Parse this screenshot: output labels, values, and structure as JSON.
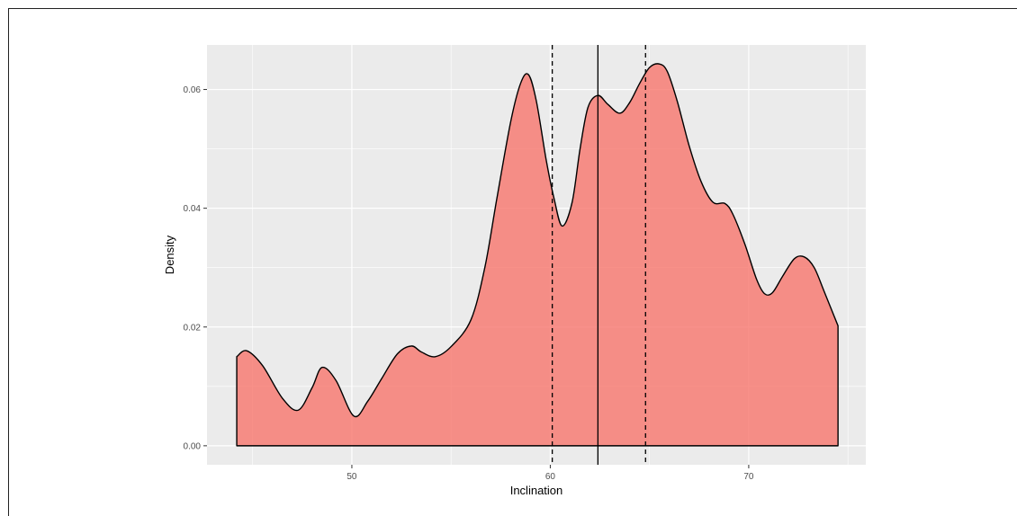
{
  "chart_data": {
    "type": "area",
    "title": "",
    "xlabel": "Inclination",
    "ylabel": "Density",
    "xlim": [
      42.7,
      75.9
    ],
    "ylim": [
      -0.0032,
      0.0675
    ],
    "x_ticks": [
      50,
      60,
      70
    ],
    "y_ticks": [
      0.0,
      0.02,
      0.04,
      0.06
    ],
    "x_tick_labels": [
      "50",
      "60",
      "70"
    ],
    "y_tick_labels": [
      "0.00",
      "0.02",
      "0.04",
      "0.06"
    ],
    "grid": true,
    "series": [
      {
        "fill": "#F8766D",
        "x": [
          44.2,
          44.7,
          45.5,
          46.5,
          47.3,
          48.0,
          48.5,
          49.2,
          50.1,
          50.8,
          51.5,
          52.3,
          53.0,
          53.5,
          54.2,
          55.0,
          56.0,
          56.7,
          57.3,
          58.0,
          58.5,
          58.9,
          59.3,
          59.8,
          60.2,
          60.6,
          61.1,
          61.5,
          61.9,
          62.4,
          62.9,
          63.5,
          64.0,
          64.5,
          65.0,
          65.5,
          65.9,
          66.4,
          67.0,
          67.6,
          68.2,
          68.8,
          69.2,
          69.8,
          70.4,
          70.8,
          71.2,
          71.7,
          72.3,
          72.8,
          73.3,
          73.8,
          74.5
        ],
        "y": [
          0.015,
          0.016,
          0.0135,
          0.008,
          0.006,
          0.0098,
          0.0132,
          0.011,
          0.005,
          0.0075,
          0.0113,
          0.0155,
          0.0168,
          0.0158,
          0.015,
          0.0167,
          0.0212,
          0.03,
          0.0415,
          0.0545,
          0.061,
          0.0625,
          0.058,
          0.048,
          0.0415,
          0.037,
          0.041,
          0.05,
          0.057,
          0.059,
          0.0575,
          0.056,
          0.0578,
          0.061,
          0.0637,
          0.0643,
          0.063,
          0.058,
          0.0505,
          0.0445,
          0.041,
          0.0408,
          0.039,
          0.034,
          0.028,
          0.0256,
          0.0258,
          0.0285,
          0.0315,
          0.0318,
          0.03,
          0.026,
          0.0202
        ]
      }
    ],
    "vlines": [
      {
        "x": 62.4,
        "style": "solid"
      },
      {
        "x": 60.1,
        "style": "dashed"
      },
      {
        "x": 64.8,
        "style": "dashed"
      }
    ],
    "colors": {
      "panel_bg": "#EBEBEB",
      "grid_major": "#FFFFFF",
      "area_fill": "#F8766D",
      "line": "#000000"
    }
  }
}
